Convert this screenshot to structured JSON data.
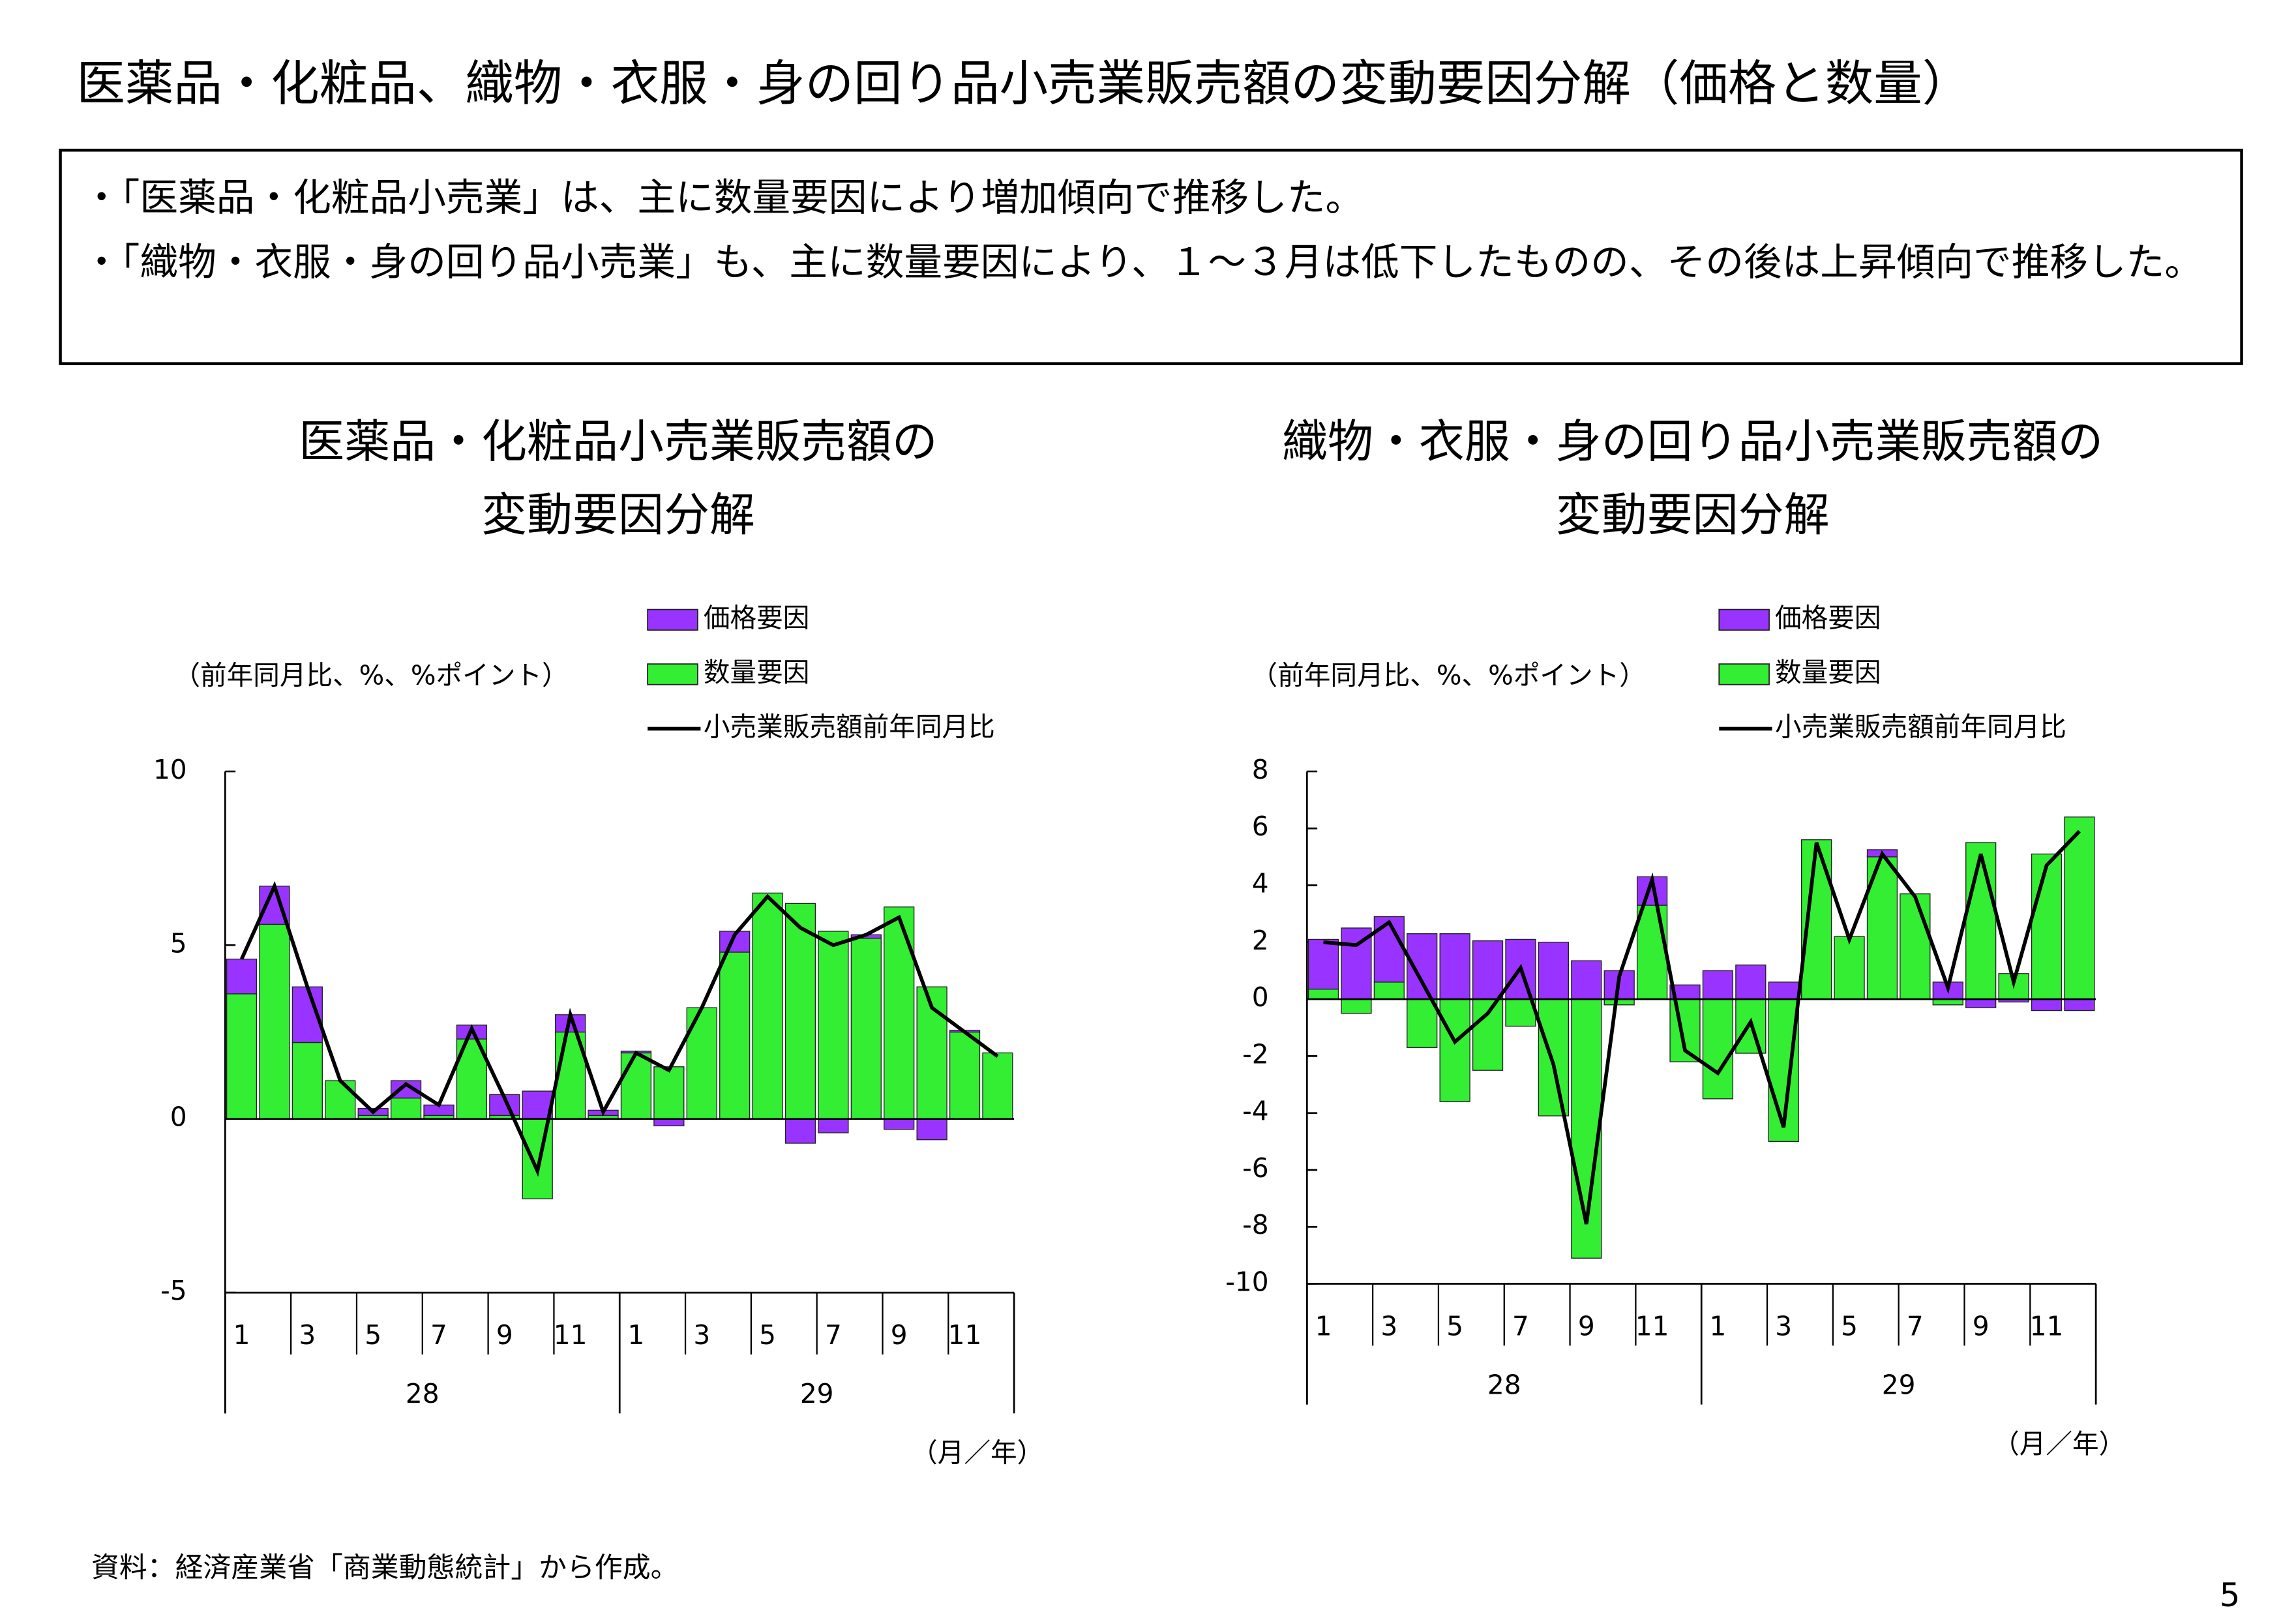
{
  "title": "医薬品・化粧品、織物・衣服・身の回り品小売業販売額の変動要因分解（価格と数量）",
  "bullets": [
    "・「医薬品・化粧品小売業」は、主に数量要因により増加傾向で推移した。",
    "・「織物・衣服・身の回り品小売業」も、主に数量要因により、１～３月は低下したものの、その後は上昇傾向で推移した。"
  ],
  "source": "資料：経済産業省「商業動態統計」から作成。",
  "page_number": "5",
  "chart_data": [
    {
      "type": "stacked-bar-line",
      "title": [
        "医薬品・化粧品小売業販売額の",
        "変動要因分解"
      ],
      "y_label": "（前年同月比、%、%ポイント）",
      "x_label": "（月／年）",
      "categories": [
        "1",
        null,
        "3",
        null,
        "5",
        null,
        "7",
        null,
        "9",
        null,
        "11",
        null,
        "1",
        null,
        "3",
        null,
        "5",
        null,
        "7",
        null,
        "9",
        null,
        "11",
        null
      ],
      "groups": [
        "28",
        "29"
      ],
      "ylim": [
        -5,
        10
      ],
      "yticks": [
        -5,
        0,
        5,
        10
      ],
      "series": [
        {
          "name": "価格要因",
          "color": "#9933ff",
          "values": [
            1.0,
            1.1,
            1.6,
            0.0,
            0.2,
            0.5,
            0.3,
            0.4,
            0.6,
            0.8,
            0.5,
            0.15,
            0.05,
            -0.2,
            0.0,
            0.6,
            0.0,
            -0.7,
            -0.4,
            0.1,
            -0.3,
            -0.6,
            0.05,
            0.0
          ]
        },
        {
          "name": "数量要因",
          "color": "#33ee33",
          "values": [
            3.6,
            5.6,
            2.2,
            1.1,
            0.1,
            0.6,
            0.1,
            2.3,
            0.1,
            -2.3,
            2.5,
            0.1,
            1.9,
            1.5,
            3.2,
            4.8,
            6.5,
            6.2,
            5.4,
            5.2,
            6.1,
            3.8,
            2.5,
            1.9
          ]
        },
        {
          "name": "小売業販売額前年同月比",
          "color": "#000000",
          "type": "line",
          "values": [
            4.6,
            6.7,
            3.8,
            1.1,
            0.2,
            1.0,
            0.4,
            2.6,
            0.6,
            -1.5,
            3.0,
            0.2,
            1.9,
            1.4,
            3.2,
            5.3,
            6.4,
            5.5,
            5.0,
            5.3,
            5.8,
            3.2,
            2.5,
            1.8
          ]
        }
      ]
    },
    {
      "type": "stacked-bar-line",
      "title": [
        "織物・衣服・身の回り品小売業販売額の",
        "変動要因分解"
      ],
      "y_label": "（前年同月比、%、%ポイント）",
      "x_label": "（月／年）",
      "categories": [
        "1",
        null,
        "3",
        null,
        "5",
        null,
        "7",
        null,
        "9",
        null,
        "11",
        null,
        "1",
        null,
        "3",
        null,
        "5",
        null,
        "7",
        null,
        "9",
        null,
        "11",
        null
      ],
      "groups": [
        "28",
        "29"
      ],
      "ylim": [
        -10,
        8
      ],
      "yticks": [
        -10,
        -8,
        -6,
        -4,
        -2,
        0,
        2,
        4,
        6,
        8
      ],
      "series": [
        {
          "name": "価格要因",
          "color": "#9933ff",
          "values": [
            1.75,
            2.5,
            2.3,
            2.3,
            2.3,
            2.05,
            2.1,
            2.0,
            1.35,
            1.0,
            1.0,
            0.5,
            1.0,
            1.2,
            0.6,
            0.0,
            0.0,
            0.25,
            0.0,
            0.6,
            -0.3,
            -0.1,
            -0.4,
            -0.4
          ]
        },
        {
          "name": "数量要因",
          "color": "#33ee33",
          "values": [
            0.35,
            -0.5,
            0.6,
            -1.7,
            -3.6,
            -2.5,
            -0.95,
            -4.1,
            -9.1,
            -0.2,
            3.3,
            -2.2,
            -3.5,
            -1.9,
            -5.0,
            5.6,
            2.2,
            5.0,
            3.7,
            -0.2,
            5.5,
            0.9,
            5.1,
            6.4
          ]
        },
        {
          "name": "小売業販売額前年同月比",
          "color": "#000000",
          "type": "line",
          "values": [
            2.0,
            1.9,
            2.7,
            0.6,
            -1.5,
            -0.5,
            1.1,
            -2.3,
            -7.9,
            0.8,
            4.2,
            -1.8,
            -2.6,
            -0.8,
            -4.5,
            5.5,
            2.1,
            5.1,
            3.6,
            0.4,
            5.1,
            0.6,
            4.7,
            5.9
          ]
        }
      ]
    }
  ]
}
